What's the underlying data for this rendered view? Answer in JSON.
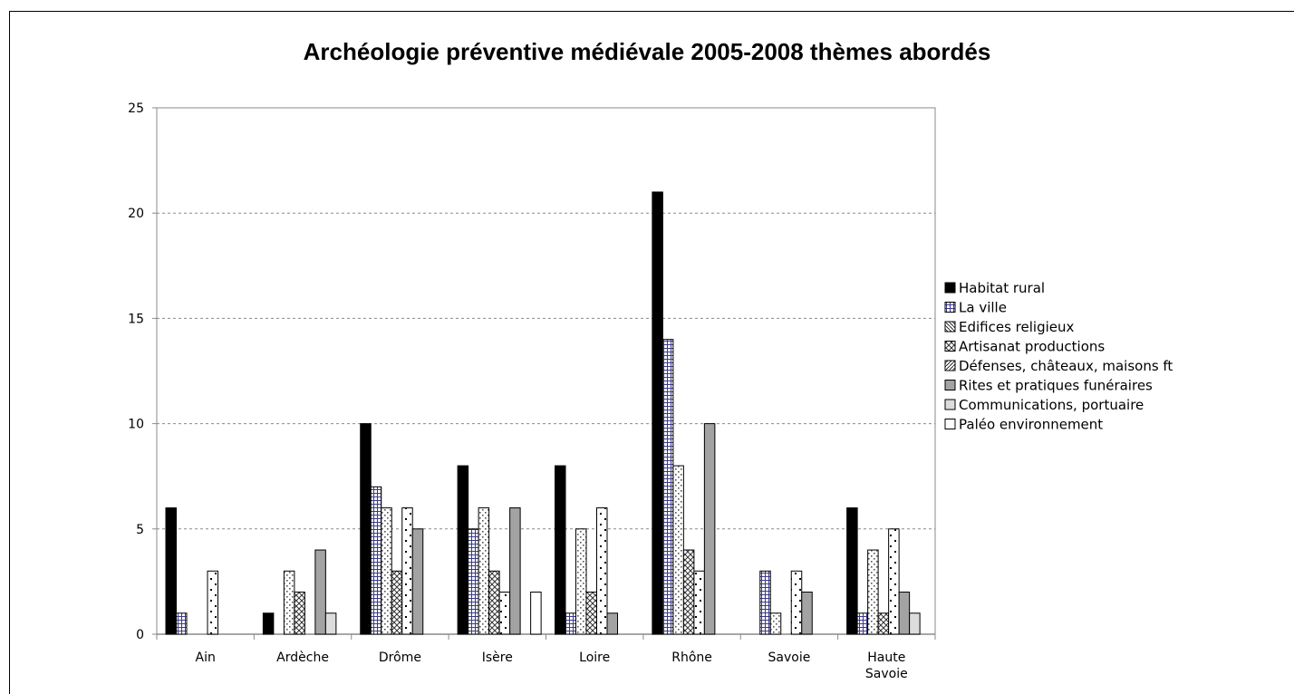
{
  "chart_data": {
    "type": "bar",
    "title": "Archéologie préventive médiévale 2005-2008 thèmes abordés",
    "xlabel": "",
    "ylabel": "",
    "ylim": [
      0,
      25
    ],
    "yticks": [
      0,
      5,
      10,
      15,
      20,
      25
    ],
    "grid": "horizontal dashed",
    "legend_position": "right",
    "categories": [
      [
        "Ain"
      ],
      [
        "Ardèche"
      ],
      [
        "Drôme"
      ],
      [
        "Isère"
      ],
      [
        "Loire"
      ],
      [
        "Rhône"
      ],
      [
        "Savoie"
      ],
      [
        "Haute",
        "Savoie"
      ]
    ],
    "series": [
      {
        "name": "Habitat rural",
        "pattern": "solid-black",
        "values": [
          6,
          1,
          10,
          8,
          8,
          21,
          0,
          6
        ]
      },
      {
        "name": "La ville",
        "pattern": "blue-grid",
        "values": [
          1,
          0,
          7,
          5,
          1,
          14,
          3,
          1
        ]
      },
      {
        "name": "Edifices religieux",
        "pattern": "dots-dense",
        "values": [
          0,
          3,
          6,
          6,
          5,
          8,
          1,
          4
        ]
      },
      {
        "name": "Artisanat productions",
        "pattern": "crosshatch",
        "values": [
          0,
          2,
          3,
          3,
          2,
          4,
          0,
          1
        ]
      },
      {
        "name": "Défenses, châteaux, maisons ft",
        "pattern": "dots-sparse",
        "values": [
          3,
          0,
          6,
          2,
          6,
          3,
          3,
          5
        ]
      },
      {
        "name": "Rites et pratiques funéraires",
        "pattern": "grey",
        "values": [
          0,
          4,
          5,
          6,
          1,
          10,
          2,
          2
        ]
      },
      {
        "name": "Communications, portuaire",
        "pattern": "light-grey",
        "values": [
          0,
          1,
          0,
          0,
          0,
          0,
          0,
          1
        ]
      },
      {
        "name": "Paléo environnement",
        "pattern": "white",
        "values": [
          0,
          0,
          0,
          2,
          0,
          0,
          0,
          0
        ]
      }
    ]
  }
}
